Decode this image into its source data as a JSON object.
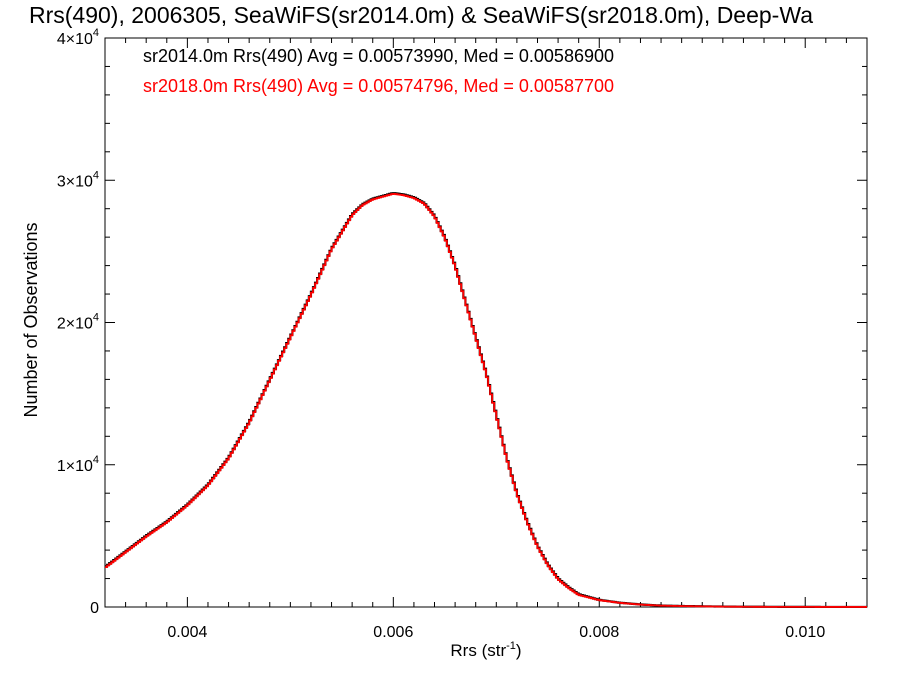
{
  "chart_data": {
    "type": "line",
    "title": "Rrs(490), 2006305, SeaWiFS(sr2014.0m) & SeaWiFS(sr2018.0m), Deep-Wa",
    "xlabel": "Rrs (str",
    "xlabel_sup": "-1",
    "xlabel_end": ")",
    "ylabel": "Number of Observations",
    "xlim": [
      0.0032,
      0.0106
    ],
    "ylim": [
      0,
      40000
    ],
    "x_ticks": [
      {
        "value": 0.004,
        "label": "0.004"
      },
      {
        "value": 0.006,
        "label": "0.006"
      },
      {
        "value": 0.008,
        "label": "0.008"
      },
      {
        "value": 0.01,
        "label": "0.010"
      }
    ],
    "y_ticks": [
      {
        "value": 0,
        "mant": "0",
        "exp": ""
      },
      {
        "value": 10000,
        "mant": "1×10",
        "exp": "4"
      },
      {
        "value": 20000,
        "mant": "2×10",
        "exp": "4"
      },
      {
        "value": 30000,
        "mant": "3×10",
        "exp": "4"
      },
      {
        "value": 40000,
        "mant": "4×10",
        "exp": "4"
      }
    ],
    "annotations": [
      {
        "text": "sr2014.0m Rrs(490) Avg = 0.00573990, Med = 0.00586900",
        "color": "#000000"
      },
      {
        "text": "sr2018.0m Rrs(490) Avg = 0.00574796, Med = 0.00587700",
        "color": "#ff0000"
      }
    ],
    "series": [
      {
        "color": "#000000",
        "x": [
          0.0032,
          0.0034,
          0.0036,
          0.0038,
          0.004,
          0.0042,
          0.0044,
          0.0046,
          0.0048,
          0.005,
          0.0052,
          0.0054,
          0.0056,
          0.0057,
          0.0058,
          0.0059,
          0.006,
          0.0061,
          0.0062,
          0.0063,
          0.0064,
          0.0065,
          0.0066,
          0.0067,
          0.0068,
          0.0069,
          0.007,
          0.0071,
          0.0072,
          0.0073,
          0.0074,
          0.0075,
          0.0076,
          0.0077,
          0.0078,
          0.008,
          0.0082,
          0.0084,
          0.0086,
          0.0088,
          0.009,
          0.0092,
          0.0094,
          0.0096,
          0.0098,
          0.01,
          0.0102,
          0.0104,
          0.0106
        ],
        "y": [
          2800,
          3900,
          5000,
          6000,
          7200,
          8600,
          10500,
          13000,
          16000,
          19000,
          22000,
          25200,
          27600,
          28300,
          28700,
          28900,
          29100,
          29000,
          28800,
          28400,
          27500,
          26000,
          24000,
          21500,
          19000,
          16500,
          13500,
          10500,
          8000,
          6000,
          4300,
          3000,
          2000,
          1400,
          900,
          500,
          300,
          180,
          100,
          70,
          50,
          30,
          20,
          15,
          10,
          8,
          5,
          5,
          5
        ]
      },
      {
        "color": "#ff0000",
        "x": [
          0.0032,
          0.0034,
          0.0036,
          0.0038,
          0.004,
          0.0042,
          0.0044,
          0.0046,
          0.0048,
          0.005,
          0.0052,
          0.0054,
          0.0056,
          0.0057,
          0.0058,
          0.0059,
          0.006,
          0.0061,
          0.0062,
          0.0063,
          0.0064,
          0.0065,
          0.0066,
          0.0067,
          0.0068,
          0.0069,
          0.007,
          0.0071,
          0.0072,
          0.0073,
          0.0074,
          0.0075,
          0.0076,
          0.0077,
          0.0078,
          0.008,
          0.0082,
          0.0084,
          0.0086,
          0.0088,
          0.009,
          0.0092,
          0.0094,
          0.0096,
          0.0098,
          0.01,
          0.0102,
          0.0104,
          0.0106
        ],
        "y": [
          2750,
          3850,
          4950,
          5950,
          7150,
          8550,
          10450,
          12950,
          15950,
          18950,
          21950,
          25150,
          27550,
          28250,
          28650,
          28850,
          29050,
          28950,
          28750,
          28350,
          27450,
          25950,
          23950,
          21450,
          18950,
          16450,
          13450,
          10450,
          7950,
          5950,
          4250,
          2950,
          1950,
          1350,
          850,
          480,
          290,
          170,
          95,
          65,
          45,
          28,
          18,
          12,
          9,
          7,
          5,
          5,
          5
        ]
      }
    ]
  }
}
